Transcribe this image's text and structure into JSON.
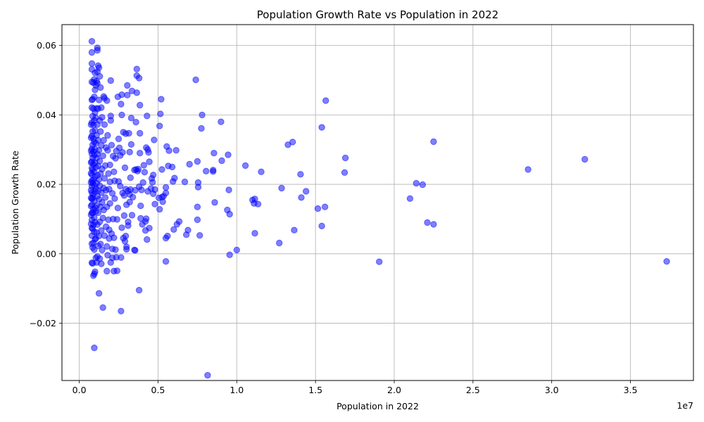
{
  "chart_data": {
    "type": "scatter",
    "title": "Population Growth Rate vs Population in 2022",
    "xlabel": "Population in 2022",
    "ylabel": "Population Growth Rate",
    "x_offset_label": "1e7",
    "xlim": [
      -1100000,
      39000000
    ],
    "ylim": [
      -0.0365,
      0.066
    ],
    "x_ticks": [
      {
        "value": 0,
        "label": "0.0"
      },
      {
        "value": 5000000,
        "label": "0.5"
      },
      {
        "value": 10000000,
        "label": "1.0"
      },
      {
        "value": 15000000,
        "label": "1.5"
      },
      {
        "value": 20000000,
        "label": "2.0"
      },
      {
        "value": 25000000,
        "label": "2.5"
      },
      {
        "value": 30000000,
        "label": "3.0"
      },
      {
        "value": 35000000,
        "label": "3.5"
      }
    ],
    "y_ticks": [
      {
        "value": -0.02,
        "label": "−0.02"
      },
      {
        "value": 0.0,
        "label": "0.00"
      },
      {
        "value": 0.02,
        "label": "0.02"
      },
      {
        "value": 0.04,
        "label": "0.04"
      },
      {
        "value": 0.06,
        "label": "0.06"
      }
    ],
    "grid": true,
    "color": "#0000ff",
    "alpha": 0.5,
    "points": [
      [
        37300000,
        -0.0022
      ],
      [
        32100000,
        0.0272
      ],
      [
        28500000,
        0.0243
      ],
      [
        22500000,
        0.0323
      ],
      [
        22500000,
        0.0085
      ],
      [
        22100000,
        0.009
      ],
      [
        21800000,
        0.0199
      ],
      [
        21400000,
        0.0203
      ],
      [
        21000000,
        0.0159
      ],
      [
        19050000,
        -0.0023
      ],
      [
        16900000,
        0.0276
      ],
      [
        16850000,
        0.0234
      ],
      [
        15650000,
        0.0441
      ],
      [
        15600000,
        0.0135
      ],
      [
        15400000,
        0.0364
      ],
      [
        15400000,
        0.008
      ],
      [
        15150000,
        0.013
      ],
      [
        14400000,
        0.018
      ],
      [
        14100000,
        0.0162
      ],
      [
        14050000,
        0.0229
      ],
      [
        13650000,
        0.0068
      ],
      [
        13550000,
        0.0322
      ],
      [
        13250000,
        0.0314
      ],
      [
        12850000,
        0.0189
      ],
      [
        12700000,
        0.0031
      ],
      [
        11550000,
        0.0236
      ],
      [
        11350000,
        0.0143
      ],
      [
        11150000,
        0.0059
      ],
      [
        11150000,
        0.0158
      ],
      [
        11100000,
        0.0145
      ],
      [
        11000000,
        0.0155
      ],
      [
        10550000,
        0.0254
      ],
      [
        10000000,
        0.0011
      ],
      [
        9550000,
        -0.0003
      ],
      [
        9550000,
        0.0114
      ],
      [
        9500000,
        0.0184
      ],
      [
        9450000,
        0.0285
      ],
      [
        9400000,
        0.0126
      ],
      [
        9050000,
        0.0268
      ],
      [
        9000000,
        0.038
      ],
      [
        8600000,
        0.0148
      ],
      [
        8550000,
        0.029
      ],
      [
        8500000,
        0.0237
      ],
      [
        8500000,
        0.0241
      ],
      [
        8150000,
        -0.035
      ],
      [
        8050000,
        0.0238
      ],
      [
        7800000,
        0.04
      ],
      [
        7750000,
        0.0361
      ],
      [
        7650000,
        0.0053
      ],
      [
        7550000,
        0.0192
      ],
      [
        7550000,
        0.0205
      ],
      [
        7500000,
        0.0135
      ],
      [
        7500000,
        0.0098
      ],
      [
        7500000,
        0.0266
      ],
      [
        7400000,
        0.0501
      ],
      [
        7000000,
        0.0258
      ],
      [
        6900000,
        0.0068
      ],
      [
        6800000,
        0.0055
      ],
      [
        6700000,
        0.0207
      ],
      [
        6350000,
        0.0093
      ],
      [
        6200000,
        0.0085
      ],
      [
        6150000,
        0.0298
      ],
      [
        6050000,
        0.0218
      ],
      [
        6000000,
        0.007
      ],
      [
        5950000,
        0.0208
      ],
      [
        5900000,
        0.025
      ],
      [
        5700000,
        0.0297
      ],
      [
        5650000,
        0.0253
      ],
      [
        5600000,
        0.0051
      ],
      [
        5550000,
        0.0309
      ],
      [
        5500000,
        0.0045
      ],
      [
        5500000,
        0.0175
      ],
      [
        5500000,
        -0.0022
      ],
      [
        5500000,
        0.0191
      ],
      [
        5350000,
        0.0166
      ],
      [
        5300000,
        0.015
      ],
      [
        5250000,
        0.0163
      ],
      [
        5250000,
        0.0243
      ],
      [
        5200000,
        0.0445
      ],
      [
        5150000,
        0.0403
      ],
      [
        5100000,
        0.0368
      ],
      [
        5100000,
        0.0128
      ],
      [
        5050000,
        0.0161
      ],
      [
        4800000,
        0.0185
      ],
      [
        4800000,
        0.0143
      ],
      [
        4750000,
        0.0328
      ],
      [
        4700000,
        0.0227
      ],
      [
        4700000,
        0.0173
      ],
      [
        4650000,
        0.0206
      ],
      [
        4600000,
        0.0217
      ],
      [
        4550000,
        0.0188
      ],
      [
        4450000,
        0.0074
      ],
      [
        4450000,
        0.0265
      ],
      [
        4400000,
        0.0292
      ],
      [
        4350000,
        0.03
      ],
      [
        4350000,
        0.018
      ],
      [
        4300000,
        0.0041
      ],
      [
        4300000,
        0.0397
      ],
      [
        4250000,
        0.0306
      ],
      [
        4250000,
        0.0101
      ],
      [
        4200000,
        0.0067
      ],
      [
        4200000,
        0.0093
      ],
      [
        4150000,
        0.0235
      ],
      [
        4100000,
        0.0255
      ],
      [
        4050000,
        0.0205
      ],
      [
        4000000,
        0.0085
      ],
      [
        3950000,
        0.0184
      ],
      [
        3900000,
        0.0102
      ],
      [
        3900000,
        0.0138
      ],
      [
        3850000,
        0.0347
      ],
      [
        3850000,
        0.029
      ],
      [
        3850000,
        0.0428
      ],
      [
        3800000,
        -0.0105
      ],
      [
        3800000,
        0.0506
      ],
      [
        3800000,
        0.0193
      ],
      [
        3750000,
        0.0244
      ],
      [
        3700000,
        0.0238
      ],
      [
        3650000,
        0.0513
      ],
      [
        3650000,
        0.0532
      ],
      [
        3650000,
        0.0464
      ],
      [
        3600000,
        0.0379
      ],
      [
        3600000,
        0.0243
      ],
      [
        3550000,
        0.001
      ],
      [
        3550000,
        0.0183
      ],
      [
        3500000,
        0.0011
      ],
      [
        3500000,
        0.0241
      ],
      [
        3400000,
        0.0163
      ],
      [
        3350000,
        0.0111
      ],
      [
        3350000,
        0.0469
      ],
      [
        3300000,
        0.0391
      ],
      [
        3300000,
        0.0315
      ],
      [
        3250000,
        0.0185
      ],
      [
        3250000,
        0.0219
      ],
      [
        3200000,
        0.0149
      ],
      [
        3200000,
        0.0171
      ],
      [
        3200000,
        0.0293
      ],
      [
        3150000,
        0.0347
      ],
      [
        3100000,
        0.0181
      ],
      [
        3100000,
        0.0092
      ],
      [
        3100000,
        0.0081
      ],
      [
        3050000,
        0.0457
      ],
      [
        3050000,
        0.0485
      ],
      [
        3000000,
        0.0013
      ],
      [
        3000000,
        0.002
      ],
      [
        3000000,
        0.0141
      ],
      [
        2950000,
        0.0186
      ],
      [
        2950000,
        0.0346
      ],
      [
        2950000,
        0.0051
      ],
      [
        2900000,
        0.0248
      ],
      [
        2900000,
        0.0036
      ],
      [
        2850000,
        0.011
      ],
      [
        2850000,
        0.0168
      ],
      [
        2800000,
        0.035
      ],
      [
        2800000,
        0.0045
      ],
      [
        2750000,
        0.0175
      ],
      [
        2750000,
        0.0292
      ],
      [
        2700000,
        0.0458
      ],
      [
        2700000,
        0.04
      ],
      [
        2700000,
        0.0075
      ],
      [
        2650000,
        0.0431
      ],
      [
        2650000,
        -0.0165
      ],
      [
        2650000,
        -0.0011
      ],
      [
        2600000,
        0.0195
      ],
      [
        2600000,
        0.0283
      ],
      [
        2550000,
        0.0305
      ],
      [
        2500000,
        0.0208
      ],
      [
        2500000,
        0.0331
      ],
      [
        2450000,
        0.0452
      ],
      [
        2450000,
        0.0132
      ],
      [
        2400000,
        -0.0049
      ],
      [
        2400000,
        0.0099
      ],
      [
        2350000,
        0.0296
      ],
      [
        2350000,
        -0.001
      ],
      [
        2300000,
        0.0275
      ],
      [
        2300000,
        0.0012
      ],
      [
        2250000,
        0.021
      ],
      [
        2250000,
        0.0159
      ],
      [
        2200000,
        -0.005
      ],
      [
        2200000,
        0.0236
      ],
      [
        2200000,
        0.0046
      ],
      [
        2150000,
        0.0281
      ],
      [
        2150000,
        0.01
      ],
      [
        2100000,
        0.0174
      ],
      [
        2100000,
        0.0014
      ],
      [
        2100000,
        -0.0012
      ],
      [
        2050000,
        0.0313
      ],
      [
        2050000,
        0.0058
      ],
      [
        2000000,
        0.0499
      ],
      [
        2000000,
        0.0397
      ],
      [
        2000000,
        0.0384
      ],
      [
        2000000,
        -0.0025
      ],
      [
        1950000,
        0.0145
      ],
      [
        1950000,
        0.0207
      ],
      [
        1950000,
        0.0256
      ],
      [
        1900000,
        0.0069
      ],
      [
        1900000,
        0.0186
      ],
      [
        1900000,
        0.0044
      ],
      [
        1850000,
        0.0231
      ],
      [
        1850000,
        0.0098
      ],
      [
        1800000,
        0.0341
      ],
      [
        1800000,
        0.0298
      ],
      [
        1800000,
        -0.0004
      ],
      [
        1750000,
        0.0021
      ],
      [
        1750000,
        0.0441
      ],
      [
        1750000,
        0.0135
      ],
      [
        1750000,
        -0.005
      ],
      [
        1700000,
        0.0183
      ],
      [
        1700000,
        0.0306
      ],
      [
        1700000,
        0.0078
      ],
      [
        1650000,
        0.0254
      ],
      [
        1650000,
        0.0162
      ],
      [
        1600000,
        0.0448
      ],
      [
        1600000,
        0.0372
      ],
      [
        1600000,
        0.0217
      ],
      [
        1600000,
        0.0052
      ],
      [
        1550000,
        0.0453
      ],
      [
        1550000,
        0.0327
      ],
      [
        1550000,
        0.0189
      ],
      [
        1550000,
        0.0126
      ],
      [
        1500000,
        -0.0155
      ],
      [
        1500000,
        0.0282
      ],
      [
        1500000,
        0.0103
      ],
      [
        1450000,
        0.0393
      ],
      [
        1450000,
        0.0244
      ],
      [
        1450000,
        0.0148
      ],
      [
        1450000,
        0.0011
      ],
      [
        1400000,
        0.0421
      ],
      [
        1400000,
        0.0312
      ],
      [
        1400000,
        0.0176
      ],
      [
        1400000,
        0.0067
      ],
      [
        1400000,
        -0.0029
      ],
      [
        1350000,
        0.0479
      ],
      [
        1350000,
        0.0352
      ],
      [
        1350000,
        0.0231
      ],
      [
        1350000,
        0.0135
      ],
      [
        1350000,
        0.0028
      ],
      [
        1300000,
        0.0511
      ],
      [
        1300000,
        0.0384
      ],
      [
        1300000,
        0.0267
      ],
      [
        1300000,
        0.0196
      ],
      [
        1300000,
        0.0092
      ],
      [
        1300000,
        -0.0014
      ],
      [
        1250000,
        -0.0114
      ],
      [
        1250000,
        0.0536
      ],
      [
        1250000,
        0.0443
      ],
      [
        1250000,
        0.0298
      ],
      [
        1250000,
        0.0214
      ],
      [
        1250000,
        0.0157
      ],
      [
        1250000,
        0.0051
      ],
      [
        1200000,
        0.0542
      ],
      [
        1200000,
        0.0418
      ],
      [
        1200000,
        0.0327
      ],
      [
        1200000,
        0.0253
      ],
      [
        1200000,
        0.0182
      ],
      [
        1200000,
        0.0118
      ],
      [
        1200000,
        0.0023
      ],
      [
        1150000,
        0.0593
      ],
      [
        1150000,
        0.0586
      ],
      [
        1150000,
        0.0524
      ],
      [
        1150000,
        0.0491
      ],
      [
        1150000,
        0.0372
      ],
      [
        1150000,
        0.0287
      ],
      [
        1150000,
        0.0226
      ],
      [
        1150000,
        0.0166
      ],
      [
        1150000,
        0.0084
      ],
      [
        1150000,
        -0.0008
      ],
      [
        1100000,
        0.0497
      ],
      [
        1100000,
        0.0419
      ],
      [
        1100000,
        0.0341
      ],
      [
        1100000,
        0.0276
      ],
      [
        1100000,
        0.0203
      ],
      [
        1100000,
        0.0139
      ],
      [
        1100000,
        0.0061
      ],
      [
        1100000,
        -0.0025
      ],
      [
        1050000,
        0.0485
      ],
      [
        1050000,
        0.0392
      ],
      [
        1050000,
        0.0318
      ],
      [
        1050000,
        0.0249
      ],
      [
        1050000,
        0.0187
      ],
      [
        1050000,
        0.0122
      ],
      [
        1050000,
        0.0044
      ],
      [
        1050000,
        -0.0012
      ],
      [
        1000000,
        0.0521
      ],
      [
        1000000,
        0.0472
      ],
      [
        1000000,
        0.0407
      ],
      [
        1000000,
        0.0355
      ],
      [
        1000000,
        0.0301
      ],
      [
        1000000,
        0.0262
      ],
      [
        1000000,
        0.0221
      ],
      [
        1000000,
        0.0179
      ],
      [
        1000000,
        0.0133
      ],
      [
        1000000,
        0.0091
      ],
      [
        1000000,
        0.0042
      ],
      [
        1000000,
        -0.0052
      ],
      [
        950000,
        -0.0271
      ],
      [
        950000,
        0.0502
      ],
      [
        950000,
        0.0452
      ],
      [
        950000,
        0.0384
      ],
      [
        950000,
        0.0322
      ],
      [
        950000,
        0.0284
      ],
      [
        950000,
        0.0236
      ],
      [
        950000,
        0.0197
      ],
      [
        950000,
        0.0152
      ],
      [
        950000,
        0.0104
      ],
      [
        950000,
        0.0063
      ],
      [
        950000,
        0.0012
      ],
      [
        950000,
        -0.0058
      ],
      [
        900000,
        0.0493
      ],
      [
        900000,
        0.0418
      ],
      [
        900000,
        0.0371
      ],
      [
        900000,
        0.0332
      ],
      [
        900000,
        0.0295
      ],
      [
        900000,
        0.0258
      ],
      [
        900000,
        0.0213
      ],
      [
        900000,
        0.0171
      ],
      [
        900000,
        0.0128
      ],
      [
        900000,
        0.0083
      ],
      [
        900000,
        0.0031
      ],
      [
        900000,
        -0.0063
      ],
      [
        850000,
        0.0445
      ],
      [
        850000,
        0.0396
      ],
      [
        850000,
        0.0352
      ],
      [
        850000,
        0.0314
      ],
      [
        850000,
        0.0276
      ],
      [
        850000,
        0.0242
      ],
      [
        850000,
        0.0204
      ],
      [
        850000,
        0.0161
      ],
      [
        850000,
        0.0118
      ],
      [
        850000,
        0.0072
      ],
      [
        850000,
        0.0018
      ],
      [
        850000,
        -0.0028
      ],
      [
        800000,
        0.0612
      ],
      [
        800000,
        0.058
      ],
      [
        800000,
        0.0548
      ],
      [
        800000,
        0.0531
      ],
      [
        800000,
        0.0495
      ],
      [
        800000,
        0.0443
      ],
      [
        800000,
        0.0421
      ],
      [
        800000,
        0.0378
      ],
      [
        800000,
        0.0339
      ],
      [
        800000,
        0.0302
      ],
      [
        800000,
        0.0288
      ],
      [
        800000,
        0.0265
      ],
      [
        800000,
        0.0247
      ],
      [
        800000,
        0.0228
      ],
      [
        800000,
        0.0211
      ],
      [
        800000,
        0.0194
      ],
      [
        800000,
        0.0176
      ],
      [
        800000,
        0.0158
      ],
      [
        800000,
        0.0141
      ],
      [
        800000,
        0.0118
      ],
      [
        800000,
        0.0097
      ],
      [
        800000,
        0.0074
      ],
      [
        800000,
        0.0052
      ],
      [
        800000,
        0.0029
      ],
      [
        800000,
        -0.0026
      ],
      [
        750000,
        0.0372
      ],
      [
        750000,
        0.0334
      ],
      [
        750000,
        0.0297
      ],
      [
        750000,
        0.0263
      ],
      [
        750000,
        0.0232
      ],
      [
        750000,
        0.0205
      ],
      [
        750000,
        0.0183
      ],
      [
        750000,
        0.0161
      ],
      [
        750000,
        0.0137
      ],
      [
        750000,
        0.0112
      ],
      [
        750000,
        0.0086
      ]
    ]
  }
}
